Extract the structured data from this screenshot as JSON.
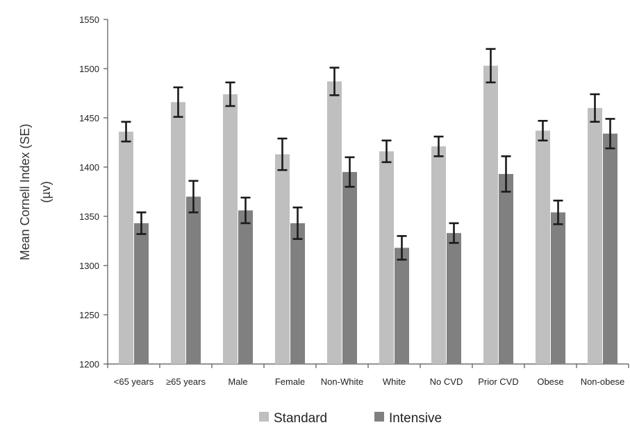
{
  "chart_data": {
    "type": "bar",
    "title": "",
    "xlabel": "",
    "ylabel_line1": "Mean Cornell Index (SE)",
    "ylabel_line2": "(µv)",
    "ylim": [
      1200,
      1550
    ],
    "yticks": [
      1200,
      1250,
      1300,
      1350,
      1400,
      1450,
      1500,
      1550
    ],
    "categories": [
      "<65 years",
      "≥65 years",
      "Male",
      "Female",
      "Non-White",
      "White",
      "No CVD",
      "Prior CVD",
      "Obese",
      "Non-obese"
    ],
    "series": [
      {
        "name": "Standard",
        "color": "#bfbfbf",
        "values": [
          1436,
          1466,
          1474,
          1413,
          1487,
          1416,
          1421,
          1503,
          1437,
          1460
        ],
        "errors": [
          10,
          15,
          12,
          16,
          14,
          11,
          10,
          17,
          10,
          14
        ]
      },
      {
        "name": "Intensive",
        "color": "#808080",
        "values": [
          1343,
          1370,
          1356,
          1343,
          1395,
          1318,
          1333,
          1393,
          1354,
          1434
        ],
        "errors": [
          11,
          16,
          13,
          16,
          15,
          12,
          10,
          18,
          12,
          15
        ]
      }
    ],
    "legend_position": "bottom-center",
    "grid": false
  }
}
